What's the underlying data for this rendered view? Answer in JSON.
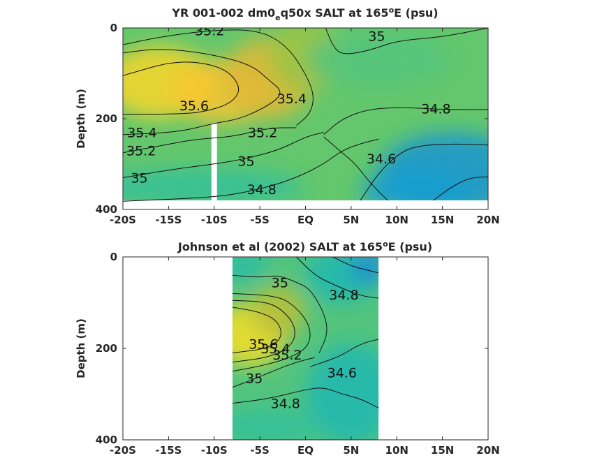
{
  "chart_data": [
    {
      "type": "heatmap",
      "title": {
        "pre": "YR 001-002 dm0",
        "sub": "e",
        "post": "q50x SALT at 165",
        "sup": "o",
        "tail": "E (psu)"
      },
      "ylabel": "Depth (m)",
      "x_ticks": [
        "-20S",
        "-15S",
        "-10S",
        "-5S",
        "EQ",
        "5N",
        "10N",
        "15N",
        "20N"
      ],
      "y_ticks": [
        "0",
        "200",
        "400"
      ],
      "xlim": [
        -20,
        20
      ],
      "ylim": [
        400,
        0
      ],
      "data_x_range": [
        -20,
        20
      ],
      "data_y_max": 380,
      "gap_column": {
        "x": -10,
        "depth_from": 210,
        "depth_to": 400
      },
      "field_blobs": [
        {
          "x": -16,
          "y": 120,
          "rx": 6,
          "ry": 80,
          "value": 35.7
        },
        {
          "x": -9,
          "y": 140,
          "rx": 6,
          "ry": 70,
          "value": 35.6
        },
        {
          "x": -4,
          "y": 110,
          "rx": 5,
          "ry": 90,
          "value": 35.4
        },
        {
          "x": 0,
          "y": 60,
          "rx": 4,
          "ry": 80,
          "value": 35.2
        },
        {
          "x": 8,
          "y": 70,
          "rx": 8,
          "ry": 60,
          "value": 34.95
        },
        {
          "x": 16,
          "y": 320,
          "rx": 8,
          "ry": 90,
          "value": 34.5
        },
        {
          "x": 12,
          "y": 360,
          "rx": 6,
          "ry": 50,
          "value": 34.55
        },
        {
          "x": -12,
          "y": 350,
          "rx": 12,
          "ry": 40,
          "value": 34.85
        }
      ],
      "background_value": 35.0,
      "contour_labels": [
        {
          "text": "35.2",
          "x": -10.5,
          "y": 8
        },
        {
          "text": "35",
          "x": 7.8,
          "y": 20
        },
        {
          "text": "35.6",
          "x": -12.2,
          "y": 173
        },
        {
          "text": "35.4",
          "x": -1.5,
          "y": 158
        },
        {
          "text": "34.8",
          "x": 14.3,
          "y": 180
        },
        {
          "text": "35.4",
          "x": -17.9,
          "y": 232
        },
        {
          "text": "35.2",
          "x": -4.7,
          "y": 232
        },
        {
          "text": "35.2",
          "x": -18.0,
          "y": 272
        },
        {
          "text": "35",
          "x": -6.5,
          "y": 295
        },
        {
          "text": "34.6",
          "x": 8.3,
          "y": 290
        },
        {
          "text": "35",
          "x": -18.2,
          "y": 332
        },
        {
          "text": "34.8",
          "x": -4.8,
          "y": 358
        }
      ],
      "contour_lines": [
        {
          "level": "35.2",
          "points": [
            [
              -20,
              37
            ],
            [
              -16,
              20
            ],
            [
              -10,
              4
            ],
            [
              -5,
              5
            ],
            [
              -2,
              40
            ],
            [
              0,
              100
            ],
            [
              1,
              150
            ],
            [
              0.5,
              190
            ],
            [
              -1,
              215
            ]
          ]
        },
        {
          "level": "35",
          "points": [
            [
              2.2,
              0
            ],
            [
              3,
              40
            ],
            [
              4,
              60
            ],
            [
              7,
              50
            ],
            [
              10,
              28
            ],
            [
              15,
              20
            ],
            [
              20,
              0
            ]
          ]
        },
        {
          "level": "35.4",
          "points": [
            [
              -20,
              55
            ],
            [
              -16,
              45
            ],
            [
              -11,
              55
            ],
            [
              -6,
              80
            ],
            [
              -4,
              115
            ],
            [
              -2.5,
              140
            ],
            [
              -3.5,
              165
            ],
            [
              -7,
              200
            ],
            [
              -10,
              210
            ],
            [
              -14,
              230
            ],
            [
              -20,
              235
            ]
          ]
        },
        {
          "level": "35.6",
          "points": [
            [
              -20,
              105
            ],
            [
              -14,
              70
            ],
            [
              -9,
              85
            ],
            [
              -7,
              130
            ],
            [
              -8,
              165
            ],
            [
              -11,
              185
            ],
            [
              -14,
              190
            ],
            [
              -20,
              190
            ]
          ]
        },
        {
          "level": "34.8",
          "points": [
            [
              2,
              235
            ],
            [
              4,
              200
            ],
            [
              7,
              178
            ],
            [
              11,
              175
            ],
            [
              15,
              180
            ],
            [
              20,
              180
            ]
          ]
        },
        {
          "level": "35.2",
          "points": [
            [
              -20,
              275
            ],
            [
              -16,
              260
            ],
            [
              -12,
              245
            ],
            [
              -8,
              240
            ],
            [
              -4,
              220
            ],
            [
              -1,
              220
            ]
          ]
        },
        {
          "level": "35",
          "points": [
            [
              -20,
              330
            ],
            [
              -14,
              310
            ],
            [
              -10,
              300
            ],
            [
              -7,
              290
            ],
            [
              -3,
              270
            ],
            [
              0,
              240
            ],
            [
              2,
              230
            ]
          ]
        },
        {
          "level": "34.8",
          "points": [
            [
              -20,
              382
            ],
            [
              -12,
              375
            ],
            [
              -8,
              368
            ],
            [
              -4,
              350
            ],
            [
              -1,
              330
            ],
            [
              2,
              300
            ],
            [
              4,
              270
            ],
            [
              6,
              255
            ],
            [
              8,
              245
            ]
          ]
        },
        {
          "level": "34.6",
          "points": [
            [
              6,
              380
            ],
            [
              8,
              320
            ],
            [
              10,
              280
            ],
            [
              12,
              260
            ],
            [
              16,
              255
            ],
            [
              20,
              258
            ]
          ]
        },
        {
          "level": "34.6",
          "points": [
            [
              14,
              380
            ],
            [
              16,
              350
            ],
            [
              18,
              330
            ],
            [
              20,
              328
            ]
          ]
        },
        {
          "level": "35",
          "points": [
            [
              9,
              380
            ],
            [
              7,
              340
            ],
            [
              5.5,
              300
            ],
            [
              4,
              275
            ],
            [
              2,
              240
            ]
          ]
        }
      ]
    },
    {
      "type": "heatmap",
      "title": {
        "pre": "Johnson et al (2002) SALT at 165",
        "sup": "o",
        "tail": "E (psu)"
      },
      "ylabel": "Depth (m)",
      "x_ticks": [
        "-20S",
        "-15S",
        "-10S",
        "-5S",
        "EQ",
        "5N",
        "10N",
        "15N",
        "20N"
      ],
      "y_ticks": [
        "0",
        "200",
        "400"
      ],
      "xlim": [
        -20,
        20
      ],
      "ylim": [
        400,
        0
      ],
      "data_x_range": [
        -8,
        8
      ],
      "data_y_max": 400,
      "field_blobs": [
        {
          "x": -6,
          "y": 170,
          "rx": 4,
          "ry": 70,
          "value": 35.75
        },
        {
          "x": -3,
          "y": 120,
          "rx": 3,
          "ry": 60,
          "value": 35.3
        },
        {
          "x": 4,
          "y": 40,
          "rx": 4,
          "ry": 60,
          "value": 34.75
        },
        {
          "x": 7,
          "y": 20,
          "rx": 2,
          "ry": 40,
          "value": 34.45
        },
        {
          "x": -7,
          "y": 20,
          "rx": 3,
          "ry": 30,
          "value": 34.8
        },
        {
          "x": 5,
          "y": 300,
          "rx": 5,
          "ry": 110,
          "value": 34.75
        },
        {
          "x": -4,
          "y": 370,
          "rx": 6,
          "ry": 40,
          "value": 34.85
        }
      ],
      "background_value": 34.95,
      "contour_labels": [
        {
          "text": "35",
          "x": -2.8,
          "y": 58
        },
        {
          "text": "34.8",
          "x": 4.2,
          "y": 85
        },
        {
          "text": "35.6",
          "x": -4.6,
          "y": 192
        },
        {
          "text": "35.4",
          "x": -3.3,
          "y": 202
        },
        {
          "text": "35.2",
          "x": -2.0,
          "y": 216
        },
        {
          "text": "34.6",
          "x": 4.0,
          "y": 255
        },
        {
          "text": "35",
          "x": -5.6,
          "y": 267
        },
        {
          "text": "34.8",
          "x": -2.2,
          "y": 322
        }
      ],
      "contour_lines": [
        {
          "level": "35",
          "points": [
            [
              -8,
              40
            ],
            [
              -5,
              45
            ],
            [
              -3,
              40
            ],
            [
              -1,
              55
            ],
            [
              0.5,
              70
            ],
            [
              2,
              120
            ],
            [
              2.5,
              165
            ],
            [
              1.5,
              210
            ]
          ]
        },
        {
          "level": "34.8",
          "points": [
            [
              -1,
              0
            ],
            [
              1,
              40
            ],
            [
              3,
              60
            ],
            [
              6,
              85
            ],
            [
              8,
              90
            ]
          ]
        },
        {
          "level": "34.6",
          "points": [
            [
              3,
              0
            ],
            [
              5,
              20
            ],
            [
              7,
              30
            ],
            [
              8,
              35
            ]
          ]
        },
        {
          "level": "35.6",
          "points": [
            [
              -8,
              110
            ],
            [
              -5,
              120
            ],
            [
              -3,
              140
            ],
            [
              -2.5,
              175
            ],
            [
              -4,
              200
            ],
            [
              -8,
              210
            ]
          ]
        },
        {
          "level": "35.4",
          "points": [
            [
              -8,
              95
            ],
            [
              -4,
              98
            ],
            [
              -2,
              125
            ],
            [
              -1,
              160
            ],
            [
              -1.5,
              195
            ],
            [
              -4,
              220
            ],
            [
              -8,
              230
            ]
          ]
        },
        {
          "level": "35.2",
          "points": [
            [
              -8,
              80
            ],
            [
              -3,
              85
            ],
            [
              -1,
              110
            ],
            [
              0.5,
              150
            ],
            [
              0.5,
              190
            ],
            [
              -1,
              215
            ],
            [
              -4,
              235
            ],
            [
              -8,
              250
            ]
          ]
        },
        {
          "level": "34.6",
          "points": [
            [
              0.5,
              240
            ],
            [
              2,
              230
            ],
            [
              4,
              215
            ],
            [
              6,
              190
            ],
            [
              8,
              180
            ]
          ]
        },
        {
          "level": "35",
          "points": [
            [
              -8,
              285
            ],
            [
              -6,
              270
            ],
            [
              -3,
              245
            ],
            [
              -1,
              230
            ],
            [
              1,
              220
            ]
          ]
        },
        {
          "level": "34.8",
          "points": [
            [
              -8,
              320
            ],
            [
              -4,
              310
            ],
            [
              0,
              290
            ],
            [
              2,
              285
            ],
            [
              4,
              300
            ],
            [
              6,
              310
            ],
            [
              8,
              330
            ]
          ]
        }
      ]
    }
  ]
}
